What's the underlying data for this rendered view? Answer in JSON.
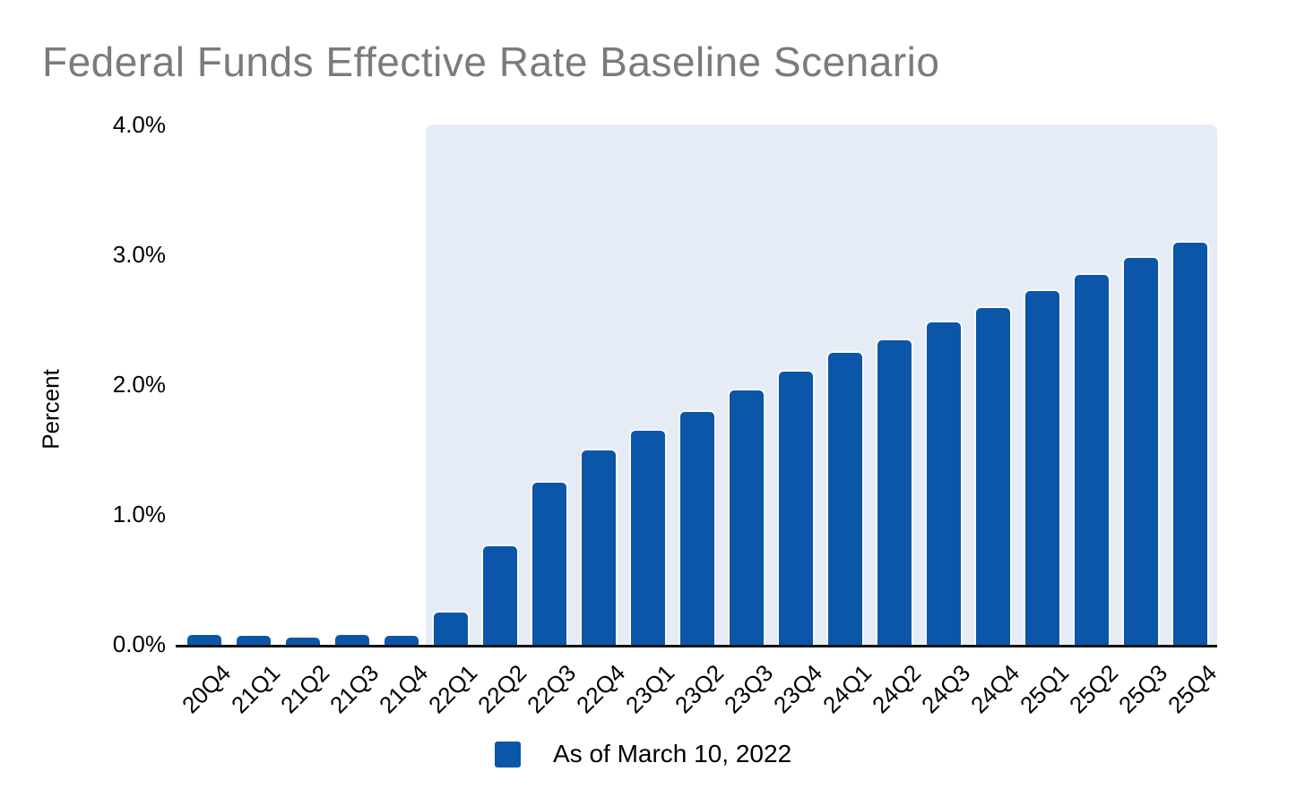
{
  "title": "Federal Funds Effective Rate Baseline Scenario",
  "legend": {
    "label": "As of March 10, 2022"
  },
  "colors": {
    "bar": "#0B56A8",
    "forecast_shade": "#E6ECF6",
    "title_gray": "#7B7B7B",
    "axis_black": "#141414"
  },
  "chart_data": {
    "type": "bar",
    "title": "Federal Funds Effective Rate Baseline Scenario",
    "xlabel": "",
    "ylabel": "Percent",
    "categories": [
      "20Q4",
      "21Q1",
      "21Q2",
      "21Q3",
      "21Q4",
      "22Q1",
      "22Q2",
      "22Q3",
      "22Q4",
      "23Q1",
      "23Q2",
      "23Q3",
      "23Q4",
      "24Q1",
      "24Q2",
      "24Q3",
      "24Q4",
      "25Q1",
      "25Q2",
      "25Q3",
      "25Q4"
    ],
    "values": [
      0.09,
      0.08,
      0.07,
      0.09,
      0.08,
      0.26,
      0.77,
      1.26,
      1.51,
      1.66,
      1.81,
      1.97,
      2.12,
      2.26,
      2.36,
      2.5,
      2.61,
      2.74,
      2.86,
      2.99,
      3.11
    ],
    "unit": "percent",
    "ylim": [
      0,
      4
    ],
    "ytick_values": [
      0,
      1,
      2,
      3,
      4
    ],
    "ytick_labels": [
      "0.0%",
      "1.0%",
      "2.0%",
      "3.0%",
      "4.0%"
    ],
    "grid": false,
    "legend_entries": [
      "As of March 10, 2022"
    ],
    "legend_position": "bottom",
    "forecast_shade": {
      "start_category": "22Q1",
      "end_category": "25Q4",
      "note": "shaded background region behind projected quarters"
    }
  }
}
